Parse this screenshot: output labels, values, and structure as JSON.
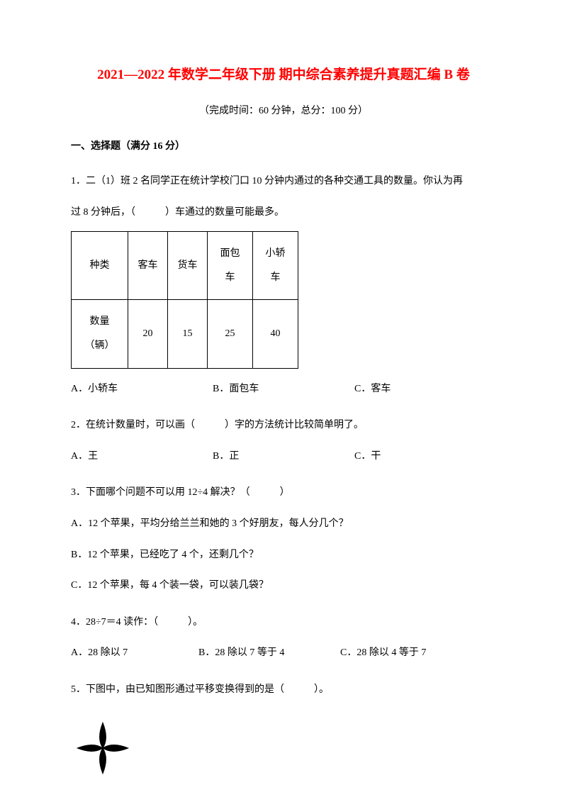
{
  "title": "2021—2022 年数学二年级下册 期中综合素养提升真题汇编 B 卷",
  "subtitle": "（完成时间：60 分钟，总分：100 分）",
  "section1": {
    "header": "一、选择题（满分 16 分）"
  },
  "q1": {
    "text_line1": "1．二（1）班 2 名同学正在统计学校门口 10 分钟内通过的各种交通工具的数量。你认为再",
    "text_line2": "过 8 分钟后，（　　　）车通过的数量可能最多。",
    "table": {
      "headers": [
        "种类",
        "客车",
        "货车",
        "面包车",
        "小轿车"
      ],
      "row_label": "数量（辆）",
      "values": [
        "20",
        "15",
        "25",
        "40"
      ],
      "col_widths": [
        "80px",
        "56px",
        "56px",
        "64px",
        "64px"
      ]
    },
    "options": {
      "a": "A．小轿车",
      "b": "B．面包车",
      "c": "C．客车"
    }
  },
  "q2": {
    "text": "2．在统计数量时，可以画（　　　）字的方法统计比较简单明了。",
    "options": {
      "a": "A．王",
      "b": "B．正",
      "c": "C．干"
    }
  },
  "q3": {
    "text": "3．下面哪个问题不可以用 12÷4 解决？（　　　）",
    "opt_a": "A．12 个苹果，平均分给兰兰和她的 3 个好朋友，每人分几个？",
    "opt_b": "B．12 个苹果，已经吃了 4 个，还剩几个？",
    "opt_c": "C．12 个苹果，每 4 个装一袋，可以装几袋？"
  },
  "q4": {
    "text": "4．28÷7＝4 读作：（　　　）。",
    "options": {
      "a": "A．28 除以 7",
      "b": "B．28 除以 7 等于 4",
      "c": "C．28 除以 4 等于 7"
    }
  },
  "q5": {
    "text": "5．下图中，由已知图形通过平移变换得到的是（　　　）。"
  },
  "flower_icon_name": "four-petal-flower-icon"
}
